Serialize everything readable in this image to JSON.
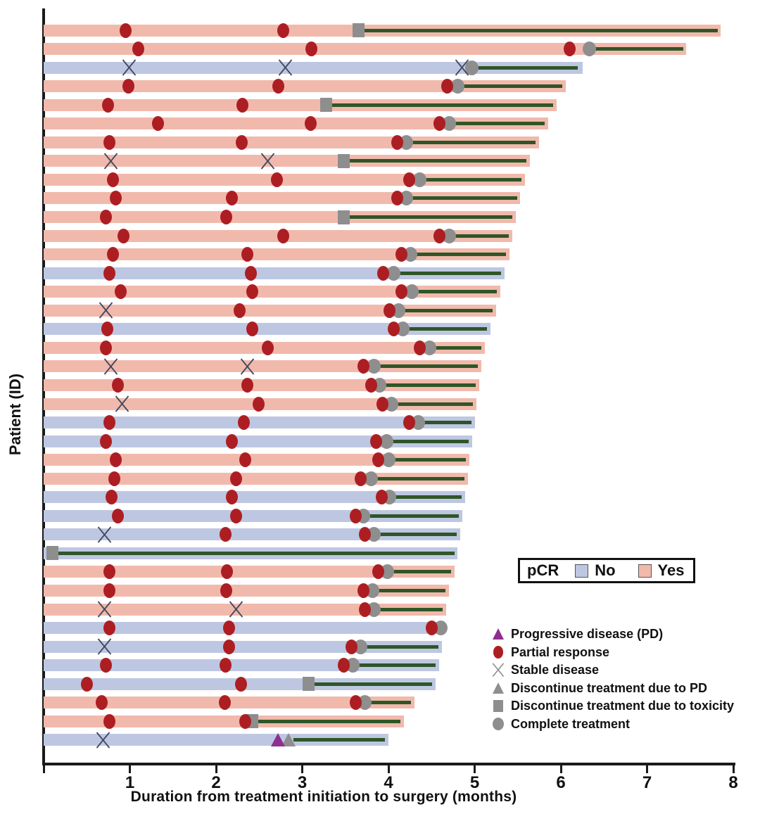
{
  "axes": {
    "y_label": "Patient (ID)",
    "x_label": "Duration from treatment initiation to surgery (months)",
    "x_ticks": [
      "1",
      "2",
      "3",
      "4",
      "5",
      "6",
      "7",
      "8"
    ],
    "x_range": [
      0,
      8
    ]
  },
  "pcr_legend": {
    "title": "pCR",
    "items": [
      {
        "label": "No",
        "color": "#bec7e2"
      },
      {
        "label": "Yes",
        "color": "#f1b9ac"
      }
    ]
  },
  "marker_legend": [
    {
      "type": "pd",
      "label": "Progressive disease (PD)"
    },
    {
      "type": "pr",
      "label": "Partial response"
    },
    {
      "type": "sd",
      "label": "Stable disease"
    },
    {
      "type": "dpd",
      "label": "Discontinue treatment due to PD"
    },
    {
      "type": "dtox",
      "label": "Discontinue treatment due to toxicity"
    },
    {
      "type": "ct",
      "label": "Complete treatment"
    }
  ],
  "colors": {
    "pcr_yes_bar": "#f1b9ac",
    "pcr_no_bar": "#bec7e2",
    "response_red": "#ad1e22",
    "treatment_green": "#2f5627",
    "marker_gray": "#8e8e8e",
    "pd_purple": "#8e2f90",
    "stable_x_plot": "#454b60",
    "stable_x_legend": "#8e8e8e",
    "axis_black": "#1a1a1a"
  },
  "chart_data": {
    "type": "bar",
    "subtype": "swimmer-plot",
    "xlabel": "Duration from treatment initiation to surgery (months)",
    "ylabel": "Patient (ID)",
    "xlim": [
      0,
      8
    ],
    "marker_types": {
      "pr": "Partial response (red circle)",
      "sd": "Stable disease (X)",
      "pd": "Progressive disease (purple triangle)",
      "dpd": "Discontinue treatment due to PD (gray triangle)",
      "dtox": "Discontinue treatment due to toxicity (gray square)",
      "ct": "Complete treatment (gray circle)"
    },
    "patients": [
      {
        "pcr": "Yes",
        "end": 7.85,
        "markers": [
          [
            "pr",
            0.95
          ],
          [
            "pr",
            2.78
          ],
          [
            "dtox",
            3.65
          ]
        ],
        "green": [
          3.65,
          7.82
        ]
      },
      {
        "pcr": "Yes",
        "end": 7.45,
        "markers": [
          [
            "pr",
            1.1
          ],
          [
            "pr",
            3.11
          ],
          [
            "pr",
            6.1
          ],
          [
            "ct",
            6.33
          ]
        ],
        "green": [
          6.33,
          7.42
        ]
      },
      {
        "pcr": "No",
        "end": 6.25,
        "markers": [
          [
            "sd",
            0.99
          ],
          [
            "sd",
            2.8
          ],
          [
            "sd",
            4.85
          ],
          [
            "ct",
            4.97
          ]
        ],
        "green": [
          4.97,
          6.2
        ]
      },
      {
        "pcr": "Yes",
        "end": 6.06,
        "markers": [
          [
            "pr",
            0.98
          ],
          [
            "pr",
            2.72
          ],
          [
            "pr",
            4.68
          ],
          [
            "ct",
            4.8
          ]
        ],
        "green": [
          4.8,
          6.02
        ]
      },
      {
        "pcr": "Yes",
        "end": 5.95,
        "markers": [
          [
            "pr",
            0.75
          ],
          [
            "pr",
            2.31
          ],
          [
            "dtox",
            3.28
          ]
        ],
        "green": [
          3.28,
          5.91
        ]
      },
      {
        "pcr": "Yes",
        "end": 5.85,
        "markers": [
          [
            "pr",
            1.33
          ],
          [
            "pr",
            3.1
          ],
          [
            "pr",
            4.59
          ],
          [
            "ct",
            4.71
          ]
        ],
        "green": [
          4.71,
          5.81
        ]
      },
      {
        "pcr": "Yes",
        "end": 5.75,
        "markers": [
          [
            "pr",
            0.76
          ],
          [
            "pr",
            2.3
          ],
          [
            "pr",
            4.1
          ],
          [
            "ct",
            4.21
          ]
        ],
        "green": [
          4.21,
          5.71
        ]
      },
      {
        "pcr": "Yes",
        "end": 5.64,
        "markers": [
          [
            "sd",
            0.78
          ],
          [
            "sd",
            2.6
          ],
          [
            "dtox",
            3.48
          ]
        ],
        "green": [
          3.48,
          5.6
        ]
      },
      {
        "pcr": "Yes",
        "end": 5.58,
        "markers": [
          [
            "pr",
            0.8
          ],
          [
            "pr",
            2.71
          ],
          [
            "pr",
            4.24
          ],
          [
            "ct",
            4.36
          ]
        ],
        "green": [
          4.36,
          5.54
        ]
      },
      {
        "pcr": "Yes",
        "end": 5.53,
        "markers": [
          [
            "pr",
            0.84
          ],
          [
            "pr",
            2.18
          ],
          [
            "pr",
            4.1
          ],
          [
            "ct",
            4.21
          ]
        ],
        "green": [
          4.21,
          5.49
        ]
      },
      {
        "pcr": "Yes",
        "end": 5.48,
        "markers": [
          [
            "pr",
            0.72
          ],
          [
            "pr",
            2.12
          ],
          [
            "dtox",
            3.48
          ]
        ],
        "green": [
          3.48,
          5.44
        ]
      },
      {
        "pcr": "Yes",
        "end": 5.44,
        "markers": [
          [
            "pr",
            0.93
          ],
          [
            "pr",
            2.78
          ],
          [
            "pr",
            4.59
          ],
          [
            "ct",
            4.71
          ]
        ],
        "green": [
          4.71,
          5.4
        ]
      },
      {
        "pcr": "Yes",
        "end": 5.4,
        "markers": [
          [
            "pr",
            0.8
          ],
          [
            "pr",
            2.36
          ],
          [
            "pr",
            4.15
          ],
          [
            "ct",
            4.26
          ]
        ],
        "green": [
          4.26,
          5.36
        ]
      },
      {
        "pcr": "No",
        "end": 5.35,
        "markers": [
          [
            "pr",
            0.76
          ],
          [
            "pr",
            2.4
          ],
          [
            "pr",
            3.94
          ],
          [
            "ct",
            4.06
          ]
        ],
        "green": [
          4.06,
          5.31
        ]
      },
      {
        "pcr": "Yes",
        "end": 5.3,
        "markers": [
          [
            "pr",
            0.89
          ],
          [
            "pr",
            2.42
          ],
          [
            "pr",
            4.15
          ],
          [
            "ct",
            4.27
          ]
        ],
        "green": [
          4.27,
          5.26
        ]
      },
      {
        "pcr": "Yes",
        "end": 5.25,
        "markers": [
          [
            "sd",
            0.72
          ],
          [
            "pr",
            2.27
          ],
          [
            "pr",
            4.01
          ],
          [
            "ct",
            4.12
          ]
        ],
        "green": [
          4.12,
          5.21
        ]
      },
      {
        "pcr": "No",
        "end": 5.18,
        "markers": [
          [
            "pr",
            0.74
          ],
          [
            "pr",
            2.42
          ],
          [
            "pr",
            4.06
          ],
          [
            "ct",
            4.17
          ]
        ],
        "green": [
          4.17,
          5.14
        ]
      },
      {
        "pcr": "Yes",
        "end": 5.12,
        "markers": [
          [
            "pr",
            0.72
          ],
          [
            "pr",
            2.6
          ],
          [
            "pr",
            4.36
          ],
          [
            "ct",
            4.48
          ]
        ],
        "green": [
          4.48,
          5.08
        ]
      },
      {
        "pcr": "Yes",
        "end": 5.08,
        "markers": [
          [
            "sd",
            0.78
          ],
          [
            "sd",
            2.36
          ],
          [
            "pr",
            3.71
          ],
          [
            "ct",
            3.83
          ]
        ],
        "green": [
          3.83,
          5.04
        ]
      },
      {
        "pcr": "Yes",
        "end": 5.05,
        "markers": [
          [
            "pr",
            0.86
          ],
          [
            "pr",
            2.36
          ],
          [
            "pr",
            3.8
          ],
          [
            "ct",
            3.9
          ]
        ],
        "green": [
          3.9,
          5.01
        ]
      },
      {
        "pcr": "Yes",
        "end": 5.02,
        "markers": [
          [
            "sd",
            0.91
          ],
          [
            "pr",
            2.49
          ],
          [
            "pr",
            3.93
          ],
          [
            "ct",
            4.04
          ]
        ],
        "green": [
          4.04,
          4.98
        ]
      },
      {
        "pcr": "No",
        "end": 5.0,
        "markers": [
          [
            "pr",
            0.76
          ],
          [
            "pr",
            2.32
          ],
          [
            "pr",
            4.24
          ],
          [
            "ct",
            4.35
          ]
        ],
        "green": [
          4.35,
          4.96
        ]
      },
      {
        "pcr": "No",
        "end": 4.97,
        "markers": [
          [
            "pr",
            0.72
          ],
          [
            "pr",
            2.18
          ],
          [
            "pr",
            3.86
          ],
          [
            "ct",
            3.98
          ]
        ],
        "green": [
          3.98,
          4.93
        ]
      },
      {
        "pcr": "Yes",
        "end": 4.94,
        "markers": [
          [
            "pr",
            0.84
          ],
          [
            "pr",
            2.34
          ],
          [
            "pr",
            3.88
          ],
          [
            "ct",
            4.0
          ]
        ],
        "green": [
          4.0,
          4.9
        ]
      },
      {
        "pcr": "Yes",
        "end": 4.92,
        "markers": [
          [
            "pr",
            0.82
          ],
          [
            "pr",
            2.23
          ],
          [
            "pr",
            3.68
          ],
          [
            "ct",
            3.8
          ]
        ],
        "green": [
          3.8,
          4.88
        ]
      },
      {
        "pcr": "No",
        "end": 4.89,
        "markers": [
          [
            "pr",
            0.79
          ],
          [
            "pr",
            2.18
          ],
          [
            "pr",
            3.92
          ],
          [
            "ct",
            4.01
          ]
        ],
        "green": [
          4.01,
          4.85
        ]
      },
      {
        "pcr": "No",
        "end": 4.86,
        "markers": [
          [
            "pr",
            0.86
          ],
          [
            "pr",
            2.23
          ],
          [
            "pr",
            3.62
          ],
          [
            "ct",
            3.71
          ]
        ],
        "green": [
          3.71,
          4.82
        ]
      },
      {
        "pcr": "No",
        "end": 4.83,
        "markers": [
          [
            "sd",
            0.71
          ],
          [
            "pr",
            2.11
          ],
          [
            "pr",
            3.73
          ],
          [
            "ct",
            3.83
          ]
        ],
        "green": [
          3.83,
          4.79
        ]
      },
      {
        "pcr": "No",
        "end": 4.8,
        "markers": [
          [
            "dtox",
            0.1
          ]
        ],
        "green": [
          0.13,
          4.77
        ]
      },
      {
        "pcr": "Yes",
        "end": 4.77,
        "markers": [
          [
            "pr",
            0.76
          ],
          [
            "pr",
            2.13
          ],
          [
            "pr",
            3.88
          ],
          [
            "ct",
            3.99
          ]
        ],
        "green": [
          3.99,
          4.73
        ]
      },
      {
        "pcr": "Yes",
        "end": 4.7,
        "markers": [
          [
            "pr",
            0.76
          ],
          [
            "pr",
            2.12
          ],
          [
            "pr",
            3.71
          ],
          [
            "ct",
            3.82
          ]
        ],
        "green": [
          3.82,
          4.66
        ]
      },
      {
        "pcr": "Yes",
        "end": 4.67,
        "markers": [
          [
            "sd",
            0.71
          ],
          [
            "sd",
            2.23
          ],
          [
            "pr",
            3.73
          ],
          [
            "ct",
            3.83
          ]
        ],
        "green": [
          3.83,
          4.63
        ]
      },
      {
        "pcr": "No",
        "end": 4.65,
        "markers": [
          [
            "pr",
            0.76
          ],
          [
            "pr",
            2.15
          ],
          [
            "pr",
            4.5
          ],
          [
            "ct",
            4.61
          ]
        ],
        "green": [
          4.61,
          4.64
        ]
      },
      {
        "pcr": "No",
        "end": 4.62,
        "markers": [
          [
            "sd",
            0.71
          ],
          [
            "pr",
            2.15
          ],
          [
            "pr",
            3.57
          ],
          [
            "ct",
            3.68
          ]
        ],
        "green": [
          3.68,
          4.58
        ]
      },
      {
        "pcr": "No",
        "end": 4.59,
        "markers": [
          [
            "pr",
            0.72
          ],
          [
            "pr",
            2.11
          ],
          [
            "pr",
            3.48
          ],
          [
            "ct",
            3.59
          ]
        ],
        "green": [
          3.59,
          4.55
        ]
      },
      {
        "pcr": "No",
        "end": 4.55,
        "markers": [
          [
            "pr",
            0.5
          ],
          [
            "pr",
            2.29
          ],
          [
            "dtox",
            3.07
          ]
        ],
        "green": [
          3.07,
          4.51
        ]
      },
      {
        "pcr": "Yes",
        "end": 4.3,
        "markers": [
          [
            "pr",
            0.67
          ],
          [
            "pr",
            2.1
          ],
          [
            "pr",
            3.62
          ],
          [
            "ct",
            3.73
          ]
        ],
        "green": [
          3.73,
          4.26
        ]
      },
      {
        "pcr": "Yes",
        "end": 4.18,
        "markers": [
          [
            "pr",
            0.76
          ],
          [
            "pr",
            2.34
          ],
          [
            "dtox",
            2.42
          ]
        ],
        "green": [
          2.42,
          4.14
        ]
      },
      {
        "pcr": "No",
        "end": 4.0,
        "markers": [
          [
            "sd",
            0.69
          ],
          [
            "pd",
            2.72
          ],
          [
            "dpd",
            2.84
          ]
        ],
        "green": [
          2.9,
          3.96
        ]
      }
    ]
  }
}
